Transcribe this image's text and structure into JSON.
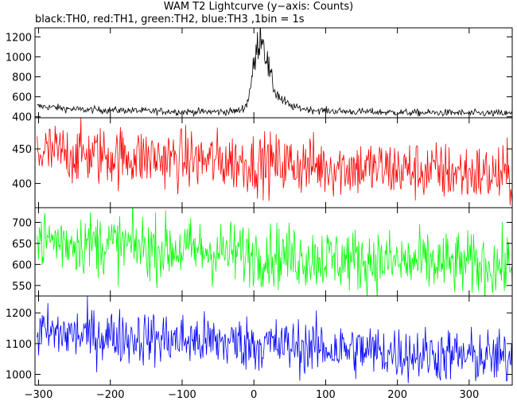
{
  "header": {
    "title": "WAM T2 Lightcurve (y−axis: Counts)",
    "subtitle": "black:TH0, red:TH1, green:TH2, blue:TH3 ,1bin = 1s"
  },
  "chart_data": [
    {
      "type": "line",
      "panel": "TH0",
      "color": "#000000",
      "xlim": [
        -305,
        360
      ],
      "ylim": [
        390,
        1290
      ],
      "yticks": [
        400,
        600,
        800,
        1000,
        1200
      ],
      "series": [
        {
          "x": [
            -300,
            -280,
            -260,
            -240,
            -220,
            -200,
            -180,
            -160,
            -140,
            -120,
            -100,
            -80,
            -60,
            -40,
            -20,
            -10,
            -5,
            0,
            5,
            10,
            15,
            20,
            25,
            30,
            40,
            50,
            60,
            80,
            100,
            120,
            140,
            160,
            180,
            200,
            220,
            240,
            260,
            280,
            300,
            320,
            340,
            360
          ],
          "values": [
            505,
            495,
            480,
            470,
            470,
            465,
            465,
            460,
            455,
            455,
            450,
            450,
            450,
            450,
            460,
            520,
            700,
            900,
            1100,
            1280,
            1100,
            900,
            750,
            650,
            560,
            510,
            490,
            470,
            460,
            455,
            450,
            450,
            445,
            445,
            440,
            440,
            440,
            440,
            435,
            435,
            435,
            430
          ]
        }
      ]
    },
    {
      "type": "line",
      "panel": "TH1",
      "color": "#ff0000",
      "xlim": [
        -305,
        360
      ],
      "ylim": [
        365,
        495
      ],
      "yticks": [
        400,
        450
      ],
      "series": [
        {
          "x": [
            -300,
            -200,
            -100,
            0,
            100,
            200,
            300,
            360
          ],
          "values": [
            445,
            440,
            435,
            430,
            425,
            420,
            415,
            410
          ]
        }
      ]
    },
    {
      "type": "line",
      "panel": "TH2",
      "color": "#00ff00",
      "xlim": [
        -305,
        360
      ],
      "ylim": [
        525,
        735
      ],
      "yticks": [
        550,
        600,
        650,
        700
      ],
      "series": [
        {
          "x": [
            -300,
            -200,
            -100,
            0,
            100,
            200,
            300,
            360
          ],
          "values": [
            660,
            648,
            635,
            625,
            615,
            605,
            600,
            595
          ]
        }
      ]
    },
    {
      "type": "line",
      "panel": "TH3",
      "color": "#0000ff",
      "xlim": [
        -305,
        360
      ],
      "ylim": [
        965,
        1255
      ],
      "yticks": [
        1000,
        1100,
        1200
      ],
      "series": [
        {
          "x": [
            -300,
            -200,
            -100,
            0,
            100,
            200,
            300,
            360
          ],
          "values": [
            1135,
            1125,
            1112,
            1100,
            1085,
            1070,
            1058,
            1050
          ]
        }
      ]
    }
  ],
  "xaxis": {
    "ticks": [
      -300,
      -200,
      -100,
      0,
      100,
      200,
      300
    ]
  }
}
